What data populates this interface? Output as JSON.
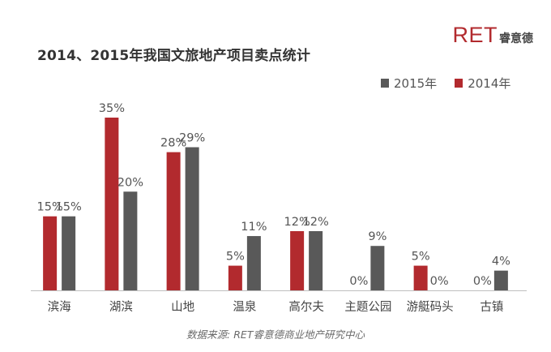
{
  "header": {
    "title": "2014、2015年我国文旅地产项目卖点统计",
    "logo_text": "RET",
    "logo_cn": "睿意德"
  },
  "source_note": "数据来源: RET睿意德商业地产研究中心",
  "colors": {
    "y2014": "#b22a2e",
    "y2015": "#595959",
    "axis": "#bfbfbf",
    "text": "#555555"
  },
  "chart_data": {
    "type": "bar",
    "title": "2014、2015年我国文旅地产项目卖点统计",
    "xlabel": "",
    "ylabel": "",
    "ylim": [
      0,
      35
    ],
    "grid": false,
    "legend_position": "top-right",
    "legend_order": [
      "2015年",
      "2014年"
    ],
    "categories": [
      "滨海",
      "湖滨",
      "山地",
      "温泉",
      "高尔夫",
      "主题公园",
      "游艇码头",
      "古镇"
    ],
    "series": [
      {
        "name": "2014年",
        "color": "#b22a2e",
        "values": [
          15,
          35,
          28,
          5,
          12,
          0,
          5,
          0
        ],
        "labels": [
          "15%",
          "35%",
          "28%",
          "5%",
          "12%",
          "0%",
          "5%",
          "0%"
        ]
      },
      {
        "name": "2015年",
        "color": "#595959",
        "values": [
          15,
          20,
          29,
          11,
          12,
          9,
          0,
          4
        ],
        "labels": [
          "15%",
          "20%",
          "29%",
          "11%",
          "12%",
          "9%",
          "0%",
          "4%"
        ]
      }
    ]
  }
}
